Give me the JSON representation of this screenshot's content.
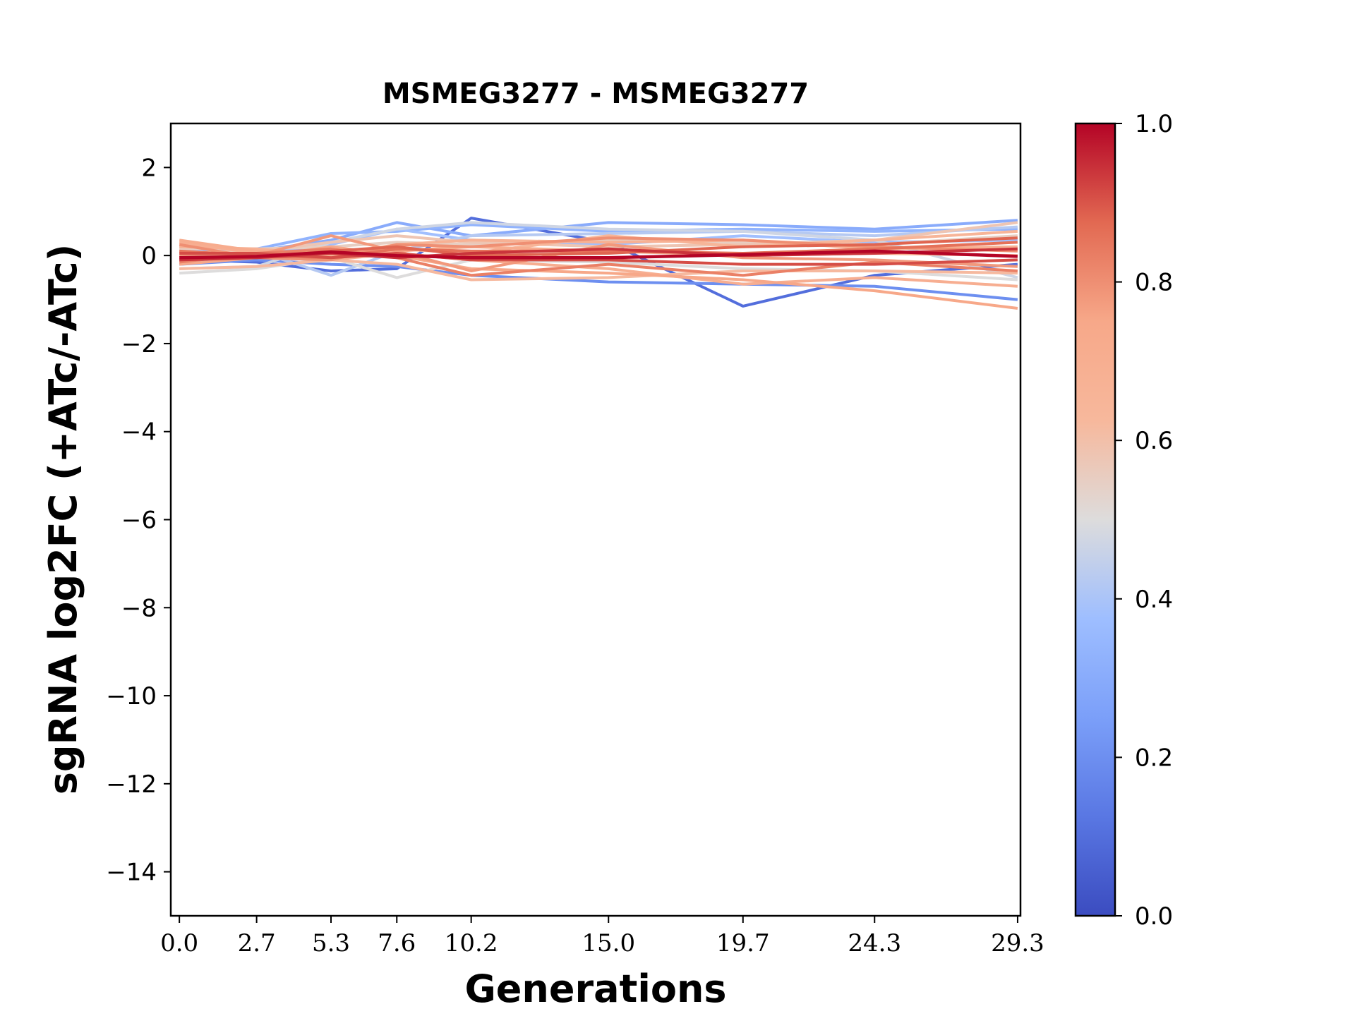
{
  "chart_data": {
    "type": "line",
    "title": "MSMEG3277 - MSMEG3277",
    "xlabel": "Generations",
    "ylabel": "sgRNA log2FC (+ATc/-ATc)",
    "x": [
      0.0,
      2.7,
      5.3,
      7.6,
      10.2,
      15.0,
      19.7,
      24.3,
      29.3
    ],
    "x_tick_labels": [
      "0.0",
      "2.7",
      "5.3",
      "7.6",
      "10.2",
      "15.0",
      "19.7",
      "24.3",
      "29.3"
    ],
    "xlim": [
      -0.3,
      29.4
    ],
    "ylim": [
      -15,
      3
    ],
    "y_ticks": [
      2,
      0,
      -2,
      -4,
      -6,
      -8,
      -10,
      -12,
      -14
    ],
    "y_tick_labels": [
      "2",
      "0",
      "−2",
      "−4",
      "−6",
      "−8",
      "−10",
      "−12",
      "−14"
    ],
    "grid": false,
    "colorbar": {
      "colormap": "coolwarm",
      "range": [
        0.0,
        1.0
      ],
      "ticks": [
        0.0,
        0.2,
        0.4,
        0.6,
        0.8,
        1.0
      ],
      "tick_labels": [
        "0.0",
        "0.2",
        "0.4",
        "0.6",
        "0.8",
        "1.0"
      ],
      "stops": [
        {
          "at": 0.0,
          "color": "#3b4cc0"
        },
        {
          "at": 0.125,
          "color": "#5977e3"
        },
        {
          "at": 0.25,
          "color": "#7b9ff9"
        },
        {
          "at": 0.375,
          "color": "#9ebeff"
        },
        {
          "at": 0.5,
          "color": "#dddcdc"
        },
        {
          "at": 0.625,
          "color": "#f7b89c"
        },
        {
          "at": 0.75,
          "color": "#f7a889"
        },
        {
          "at": 0.875,
          "color": "#e26952"
        },
        {
          "at": 1.0,
          "color": "#b40426"
        }
      ]
    },
    "series": [
      {
        "color_value": 0.1,
        "values": [
          -0.1,
          -0.15,
          -0.35,
          -0.3,
          0.85,
          0.3,
          -1.15,
          -0.45,
          -0.2
        ]
      },
      {
        "color_value": 0.2,
        "values": [
          -0.2,
          -0.1,
          -0.2,
          -0.25,
          -0.45,
          -0.6,
          -0.65,
          -0.7,
          -1.0
        ]
      },
      {
        "color_value": 0.3,
        "values": [
          0.0,
          0.1,
          0.35,
          0.75,
          0.45,
          0.75,
          0.7,
          0.6,
          0.8
        ]
      },
      {
        "color_value": 0.33,
        "values": [
          0.1,
          0.15,
          0.5,
          0.55,
          0.7,
          0.55,
          0.6,
          0.55,
          0.6
        ]
      },
      {
        "color_value": 0.38,
        "values": [
          0.05,
          0.05,
          0.25,
          0.6,
          0.35,
          0.25,
          0.45,
          0.3,
          0.35
        ]
      },
      {
        "color_value": 0.42,
        "values": [
          0.2,
          0.1,
          -0.45,
          0.1,
          0.45,
          0.5,
          0.55,
          0.45,
          0.65
        ]
      },
      {
        "color_value": 0.47,
        "values": [
          -0.3,
          -0.25,
          0.3,
          0.6,
          0.75,
          0.6,
          0.55,
          0.35,
          -0.5
        ]
      },
      {
        "color_value": 0.5,
        "values": [
          -0.4,
          -0.3,
          -0.05,
          -0.5,
          -0.1,
          -0.15,
          -0.3,
          -0.35,
          -0.55
        ]
      },
      {
        "color_value": 0.55,
        "values": [
          0.15,
          0.15,
          0.2,
          0.3,
          0.25,
          0.35,
          0.3,
          0.25,
          0.45
        ]
      },
      {
        "color_value": 0.58,
        "values": [
          0.05,
          0.1,
          0.3,
          0.45,
          0.3,
          0.2,
          0.25,
          0.35,
          0.75
        ]
      },
      {
        "color_value": 0.62,
        "values": [
          -0.3,
          -0.25,
          -0.1,
          -0.2,
          -0.55,
          -0.5,
          -0.35,
          -0.35,
          -0.4
        ]
      },
      {
        "color_value": 0.65,
        "values": [
          0.1,
          0.0,
          0.1,
          0.15,
          0.05,
          0.45,
          0.2,
          0.35,
          0.55
        ]
      },
      {
        "color_value": 0.68,
        "values": [
          0.2,
          0.15,
          0.0,
          0.25,
          0.35,
          0.3,
          0.35,
          0.15,
          0.2
        ]
      },
      {
        "color_value": 0.7,
        "values": [
          0.3,
          0.05,
          -0.1,
          0.05,
          -0.1,
          -0.3,
          -0.65,
          -0.5,
          -0.7
        ]
      },
      {
        "color_value": 0.72,
        "values": [
          0.35,
          0.1,
          0.05,
          0.1,
          0.2,
          0.1,
          0.0,
          0.05,
          0.0
        ]
      },
      {
        "color_value": 0.75,
        "values": [
          -0.2,
          -0.05,
          0.2,
          0.0,
          -0.3,
          -0.4,
          -0.55,
          -0.8,
          -1.2
        ]
      },
      {
        "color_value": 0.78,
        "values": [
          0.0,
          0.0,
          0.45,
          0.1,
          -0.35,
          0.25,
          -0.05,
          -0.1,
          -0.25
        ]
      },
      {
        "color_value": 0.8,
        "values": [
          0.25,
          -0.05,
          -0.1,
          0.25,
          0.2,
          0.4,
          0.35,
          0.2,
          0.1
        ]
      },
      {
        "color_value": 0.83,
        "values": [
          -0.15,
          0.05,
          0.15,
          -0.05,
          -0.45,
          -0.2,
          -0.45,
          -0.15,
          -0.35
        ]
      },
      {
        "color_value": 0.86,
        "values": [
          0.1,
          0.0,
          -0.05,
          0.15,
          0.1,
          0.1,
          0.05,
          0.15,
          0.3
        ]
      },
      {
        "color_value": 0.88,
        "values": [
          -0.05,
          -0.05,
          0.1,
          0.2,
          0.0,
          0.05,
          0.2,
          0.25,
          0.4
        ]
      },
      {
        "color_value": 0.91,
        "values": [
          0.05,
          0.05,
          -0.05,
          0.05,
          -0.1,
          -0.1,
          -0.2,
          -0.2,
          -0.1
        ]
      },
      {
        "color_value": 0.94,
        "values": [
          -0.1,
          -0.05,
          0.05,
          -0.05,
          0.05,
          0.15,
          0.0,
          0.05,
          0.15
        ]
      },
      {
        "color_value": 1.0,
        "values": [
          -0.05,
          -0.02,
          0.08,
          0.0,
          -0.05,
          -0.05,
          0.02,
          0.1,
          -0.02
        ]
      }
    ]
  }
}
